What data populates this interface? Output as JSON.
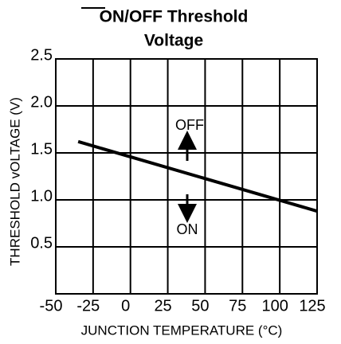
{
  "chart_data": {
    "type": "line",
    "title_lines": [
      "ON/OFF Threshold",
      "Voltage"
    ],
    "xlabel": "JUNCTION TEMPERATURE (°C)",
    "ylabel": "THRESHOLD vOLTAGE (V)",
    "x": [
      -35,
      125
    ],
    "series": [
      {
        "color": "#000000",
        "values": [
          1.62,
          0.88
        ]
      }
    ],
    "xlim": [
      -50,
      125
    ],
    "xticks": [
      -50,
      -25,
      0,
      25,
      50,
      75,
      100,
      125
    ],
    "ylim": [
      0,
      2.5
    ],
    "yticks": [
      0.5,
      {
        "value": 1,
        "label": "1.0"
      },
      1.5,
      {
        "value": 2,
        "label": "2.0"
      },
      2.5
    ],
    "grid": true,
    "annotations": [
      "OFF",
      "ON"
    ]
  }
}
